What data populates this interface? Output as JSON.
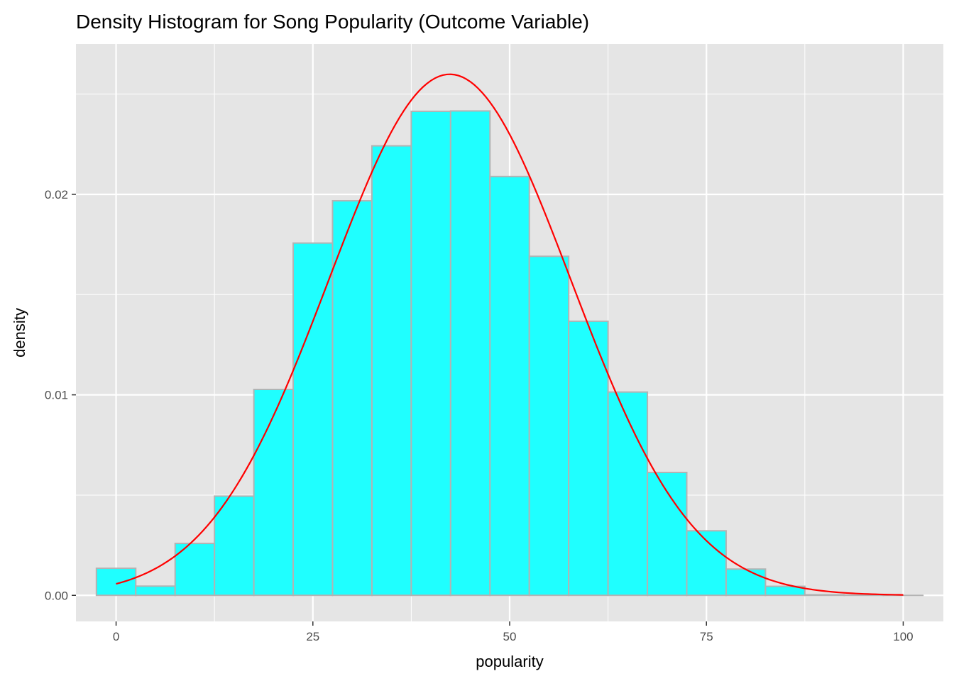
{
  "colors": {
    "panel_background": "#e5e5e5",
    "grid_major": "#ffffff",
    "grid_minor": "#f2f2f2",
    "bar_fill": "#1fffff",
    "bar_outline": "#b3b3b3",
    "curve": "#ff0000",
    "tick": "#333333"
  },
  "chart_data": {
    "type": "bar",
    "subtype": "density histogram with normal curve overlay",
    "title": "Density Histogram for Song Popularity (Outcome Variable)",
    "xlabel": "popularity",
    "ylabel": "density",
    "xlim": [
      -5.1,
      105.1
    ],
    "ylim": [
      -0.0013,
      0.0275
    ],
    "x_ticks": [
      0,
      25,
      50,
      75,
      100
    ],
    "x_tick_labels": [
      "0",
      "25",
      "50",
      "75",
      "100"
    ],
    "y_ticks": [
      0.0,
      0.01,
      0.02
    ],
    "y_tick_labels": [
      "0.00",
      "0.01",
      "0.02"
    ],
    "grid": true,
    "legend": "none",
    "bin_width": 5,
    "bins": [
      {
        "x_start": -2.5,
        "x_end": 2.5,
        "density": 0.00135
      },
      {
        "x_start": 2.5,
        "x_end": 7.5,
        "density": 0.00046
      },
      {
        "x_start": 7.5,
        "x_end": 12.5,
        "density": 0.00259
      },
      {
        "x_start": 12.5,
        "x_end": 17.5,
        "density": 0.00495
      },
      {
        "x_start": 17.5,
        "x_end": 22.5,
        "density": 0.01027
      },
      {
        "x_start": 22.5,
        "x_end": 27.5,
        "density": 0.01757
      },
      {
        "x_start": 27.5,
        "x_end": 32.5,
        "density": 0.01968
      },
      {
        "x_start": 32.5,
        "x_end": 37.5,
        "density": 0.02242
      },
      {
        "x_start": 37.5,
        "x_end": 42.5,
        "density": 0.02414
      },
      {
        "x_start": 42.5,
        "x_end": 47.5,
        "density": 0.02416
      },
      {
        "x_start": 47.5,
        "x_end": 52.5,
        "density": 0.02089
      },
      {
        "x_start": 52.5,
        "x_end": 57.5,
        "density": 0.01691
      },
      {
        "x_start": 57.5,
        "x_end": 62.5,
        "density": 0.01367
      },
      {
        "x_start": 62.5,
        "x_end": 67.5,
        "density": 0.01014
      },
      {
        "x_start": 67.5,
        "x_end": 72.5,
        "density": 0.00613
      },
      {
        "x_start": 72.5,
        "x_end": 77.5,
        "density": 0.00322
      },
      {
        "x_start": 77.5,
        "x_end": 82.5,
        "density": 0.00131
      },
      {
        "x_start": 82.5,
        "x_end": 87.5,
        "density": 0.00045
      },
      {
        "x_start": 87.5,
        "x_end": 92.5,
        "density": 3e-05
      },
      {
        "x_start": 92.5,
        "x_end": 97.5,
        "density": 1e-05
      },
      {
        "x_start": 97.5,
        "x_end": 102.5,
        "density": 0.0
      }
    ],
    "normal_curve": {
      "mean": 42.4,
      "sd": 15.35,
      "x_range": [
        0,
        100
      ]
    }
  }
}
